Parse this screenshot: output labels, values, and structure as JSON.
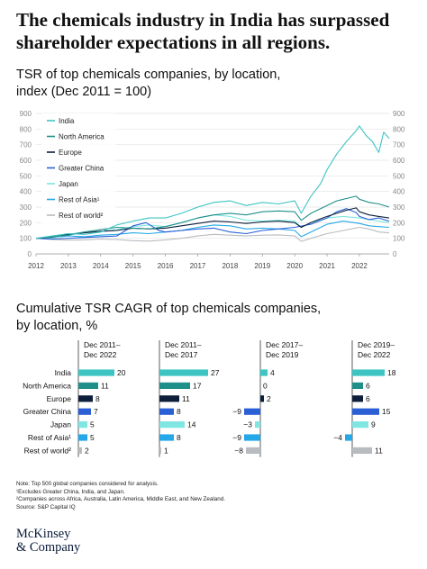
{
  "headline": "The chemicals industry in India has surpassed shareholder expectations in all regions.",
  "line_chart_title": "TSR of top chemicals companies, by location,",
  "line_chart_subtitle": "index (Dec 2011 = 100)",
  "bar_chart_title_1": "Cumulative TSR CAGR of top chemicals companies,",
  "bar_chart_title_2": "by location, %",
  "colors": {
    "India": "#3fc4c4",
    "North America": "#1f8f8a",
    "Europe": "#0d1e3a",
    "Greater China": "#2a5fd6",
    "Japan": "#7fe6e2",
    "Rest of Asia": "#25a8e8",
    "Rest of world": "#b8bcc0"
  },
  "notes": [
    "Note: Top 500 global companies considered for analysis.",
    "¹Excludes Greater China, India, and Japan.",
    "²Companies across Africa, Australia, Latin America, Middle East, and New Zealand.",
    "Source: S&P Capital IQ"
  ],
  "logo_line1": "McKinsey",
  "logo_line2": "& Company",
  "chart_data": [
    {
      "type": "line",
      "title": "TSR of top chemicals companies, by location,",
      "subtitle": "index (Dec 2011 = 100)",
      "ylim": [
        0,
        900
      ],
      "yticks": [
        "0",
        "100",
        "200",
        "300",
        "400",
        "500",
        "600",
        "700",
        "800",
        "900"
      ],
      "xticks": [
        "2012",
        "2013",
        "2014",
        "2015",
        "2016",
        "2017",
        "2018",
        "2019",
        "2020",
        "2021",
        "2022"
      ],
      "xlim": [
        2012.0,
        2022.92
      ],
      "grid": true,
      "legend_position": "top-left",
      "legend": [
        "India",
        "North America",
        "Europe",
        "Greater China",
        "Japan",
        "Rest of Asia¹",
        "Rest of world²"
      ],
      "series": [
        {
          "name": "India",
          "x": [
            2012.0,
            2012.5,
            2013.0,
            2013.5,
            2014.0,
            2014.5,
            2015.0,
            2015.5,
            2016.0,
            2016.5,
            2017.0,
            2017.5,
            2018.0,
            2018.5,
            2019.0,
            2019.5,
            2020.0,
            2020.2,
            2020.5,
            2020.8,
            2021.0,
            2021.3,
            2021.6,
            2021.9,
            2022.0,
            2022.2,
            2022.4,
            2022.6,
            2022.75,
            2022.92
          ],
          "y": [
            100,
            115,
            130,
            125,
            140,
            185,
            210,
            230,
            230,
            260,
            300,
            330,
            340,
            310,
            330,
            320,
            340,
            260,
            370,
            450,
            540,
            640,
            720,
            790,
            820,
            760,
            720,
            650,
            780,
            740
          ]
        },
        {
          "name": "North America",
          "x": [
            2012.0,
            2012.5,
            2013.0,
            2013.5,
            2014.0,
            2014.5,
            2015.0,
            2015.5,
            2016.0,
            2016.5,
            2017.0,
            2017.5,
            2018.0,
            2018.5,
            2019.0,
            2019.5,
            2020.0,
            2020.2,
            2020.5,
            2020.8,
            2021.0,
            2021.3,
            2021.6,
            2021.9,
            2022.0,
            2022.3,
            2022.6,
            2022.92
          ],
          "y": [
            100,
            110,
            120,
            140,
            155,
            170,
            165,
            160,
            175,
            200,
            230,
            250,
            260,
            250,
            270,
            275,
            270,
            215,
            260,
            290,
            310,
            340,
            355,
            370,
            350,
            330,
            320,
            300
          ]
        },
        {
          "name": "Europe",
          "x": [
            2012.0,
            2012.5,
            2013.0,
            2013.5,
            2014.0,
            2014.5,
            2015.0,
            2015.5,
            2016.0,
            2016.5,
            2017.0,
            2017.5,
            2018.0,
            2018.5,
            2019.0,
            2019.5,
            2020.0,
            2020.2,
            2020.5,
            2020.8,
            2021.0,
            2021.3,
            2021.6,
            2021.9,
            2022.0,
            2022.3,
            2022.6,
            2022.92
          ],
          "y": [
            100,
            108,
            125,
            135,
            145,
            150,
            165,
            160,
            165,
            180,
            195,
            210,
            205,
            195,
            205,
            210,
            200,
            170,
            200,
            225,
            240,
            260,
            280,
            295,
            270,
            250,
            240,
            230
          ]
        },
        {
          "name": "Greater China",
          "x": [
            2012.0,
            2012.5,
            2013.0,
            2013.5,
            2014.0,
            2014.5,
            2015.0,
            2015.4,
            2015.8,
            2016.0,
            2016.5,
            2017.0,
            2017.5,
            2018.0,
            2018.5,
            2019.0,
            2019.5,
            2020.0,
            2020.5,
            2021.0,
            2021.3,
            2021.6,
            2021.9,
            2022.0,
            2022.3,
            2022.6,
            2022.92
          ],
          "y": [
            100,
            95,
            100,
            105,
            110,
            115,
            180,
            200,
            150,
            140,
            150,
            160,
            165,
            140,
            130,
            150,
            160,
            170,
            190,
            230,
            270,
            290,
            265,
            240,
            220,
            230,
            210
          ]
        },
        {
          "name": "Japan",
          "x": [
            2012.0,
            2012.5,
            2013.0,
            2013.5,
            2014.0,
            2014.5,
            2015.0,
            2015.5,
            2016.0,
            2016.5,
            2017.0,
            2017.5,
            2018.0,
            2018.5,
            2019.0,
            2019.5,
            2020.0,
            2020.2,
            2020.5,
            2021.0,
            2021.5,
            2022.0,
            2022.3,
            2022.6,
            2022.92
          ],
          "y": [
            100,
            100,
            125,
            140,
            145,
            155,
            175,
            185,
            175,
            200,
            230,
            250,
            240,
            215,
            210,
            215,
            210,
            170,
            200,
            230,
            240,
            230,
            220,
            210,
            200
          ]
        },
        {
          "name": "Rest of Asia¹",
          "x": [
            2012.0,
            2012.5,
            2013.0,
            2013.5,
            2014.0,
            2014.5,
            2015.0,
            2015.5,
            2016.0,
            2016.5,
            2017.0,
            2017.5,
            2018.0,
            2018.5,
            2019.0,
            2019.5,
            2020.0,
            2020.2,
            2020.5,
            2021.0,
            2021.5,
            2022.0,
            2022.3,
            2022.6,
            2022.92
          ],
          "y": [
            100,
            105,
            115,
            110,
            120,
            125,
            135,
            130,
            140,
            150,
            170,
            185,
            180,
            160,
            165,
            160,
            150,
            110,
            140,
            190,
            210,
            195,
            180,
            175,
            170
          ]
        },
        {
          "name": "Rest of world²",
          "x": [
            2012.0,
            2012.5,
            2013.0,
            2013.5,
            2014.0,
            2014.5,
            2015.0,
            2015.5,
            2016.0,
            2016.5,
            2017.0,
            2017.5,
            2018.0,
            2018.5,
            2019.0,
            2019.5,
            2020.0,
            2020.2,
            2020.5,
            2021.0,
            2021.5,
            2022.0,
            2022.3,
            2022.6,
            2022.92
          ],
          "y": [
            100,
            92,
            88,
            90,
            95,
            92,
            85,
            82,
            90,
            100,
            115,
            125,
            120,
            115,
            120,
            122,
            115,
            80,
            100,
            130,
            150,
            170,
            160,
            140,
            135
          ]
        }
      ]
    },
    {
      "type": "bar",
      "orientation": "horizontal",
      "title": "Cumulative TSR CAGR of top chemicals companies, by location, %",
      "categories": [
        "India",
        "North America",
        "Europe",
        "Greater China",
        "Japan",
        "Rest of Asia¹",
        "Rest of world²"
      ],
      "series": [
        {
          "name": "Dec 2011–Dec 2022",
          "label_lines": [
            "Dec 2011–",
            "Dec 2022"
          ],
          "values": [
            20,
            11,
            8,
            7,
            5,
            5,
            2
          ]
        },
        {
          "name": "Dec 2011–Dec 2017",
          "label_lines": [
            "Dec 2011–",
            "Dec 2017"
          ],
          "values": [
            27,
            17,
            11,
            8,
            14,
            8,
            1
          ]
        },
        {
          "name": "Dec 2017–Dec 2019",
          "label_lines": [
            "Dec 2017–",
            "Dec 2019"
          ],
          "values": [
            4,
            0,
            2,
            -9,
            -3,
            -9,
            -8
          ]
        },
        {
          "name": "Dec 2019–Dec 2022",
          "label_lines": [
            "Dec 2019–",
            "Dec 2022"
          ],
          "values": [
            18,
            6,
            6,
            15,
            9,
            -4,
            11
          ]
        }
      ]
    }
  ]
}
